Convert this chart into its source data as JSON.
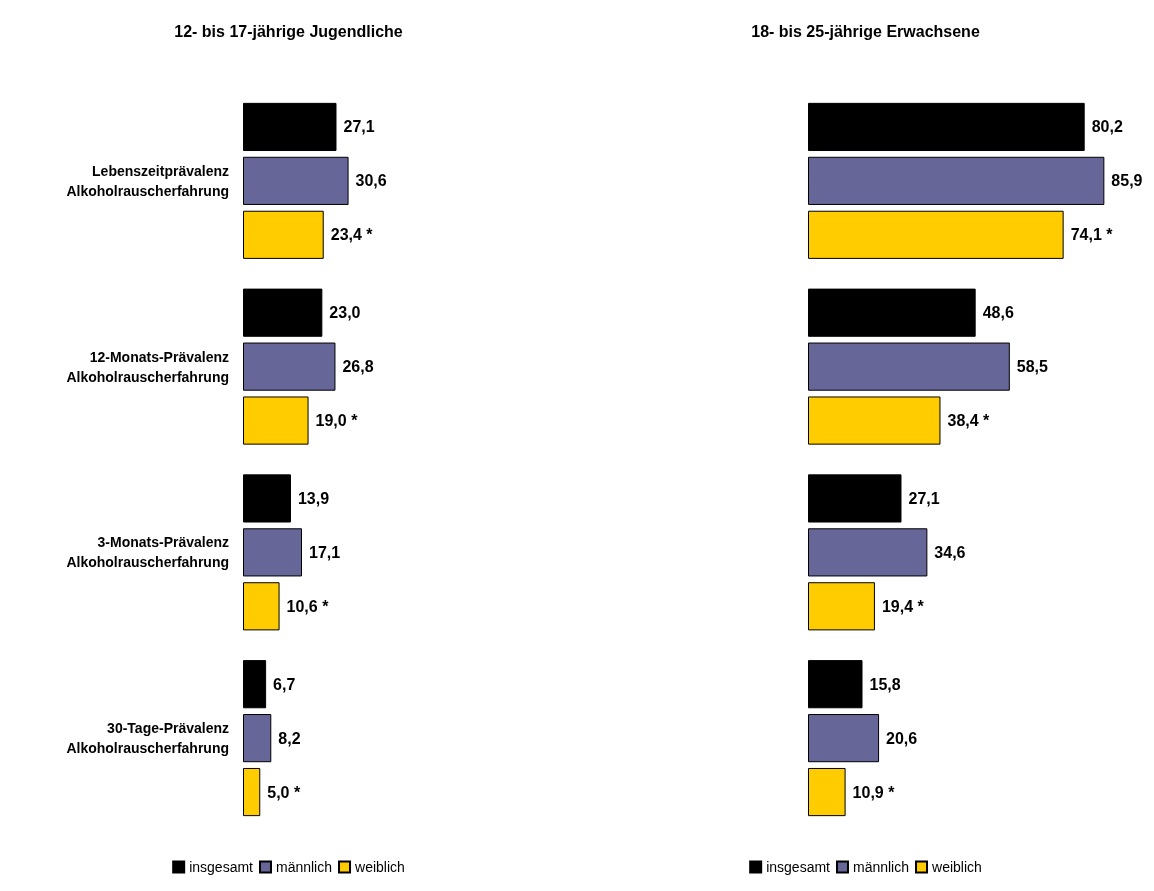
{
  "chart_data": [
    {
      "type": "bar",
      "orientation": "horizontal",
      "title": "12- bis 17-jährige Jugendliche",
      "categories": [
        "Lebenszeitprävalenz\nAlkoholrauscherfahrung",
        "12-Monats-Prävalenz\nAlkoholrauscherfahrung",
        "3-Monats-Prävalenz\nAlkoholrauscherfahrung",
        "30-Tage-Prävalenz\nAlkoholrauscherfahrung"
      ],
      "tick_labels": "y",
      "grid": false,
      "legend": "bottom",
      "series": [
        {
          "name": "insgesamt",
          "color": "#000000",
          "values": [
            27.1,
            23.0,
            13.9,
            6.7
          ],
          "value_labels": [
            "27,1",
            "23,0",
            "13,9",
            "6,7"
          ]
        },
        {
          "name": "männlich",
          "color": "#666699",
          "values": [
            30.6,
            26.8,
            17.1,
            8.2
          ],
          "value_labels": [
            "30,6",
            "26,8",
            "17,1",
            "8,2"
          ]
        },
        {
          "name": "weiblich",
          "color": "#ffcc00",
          "values": [
            23.4,
            19.0,
            10.6,
            5.0
          ],
          "value_labels": [
            "23,4 *",
            "19,0 *",
            "10,6 *",
            "5,0 *"
          ]
        }
      ]
    },
    {
      "type": "bar",
      "orientation": "horizontal",
      "title": "18- bis 25-jährige Erwachsene",
      "categories": [
        null,
        null,
        null,
        null
      ],
      "tick_labels": false,
      "grid": false,
      "legend": "bottom",
      "series": [
        {
          "name": "insgesamt",
          "color": "#000000",
          "values": [
            80.2,
            48.6,
            27.1,
            15.8
          ],
          "value_labels": [
            "80,2",
            "48,6",
            "27,1",
            "15,8"
          ]
        },
        {
          "name": "männlich",
          "color": "#666699",
          "values": [
            85.9,
            58.5,
            34.6,
            20.6
          ],
          "value_labels": [
            "85,9",
            "58,5",
            "34,6",
            "20,6"
          ]
        },
        {
          "name": "weiblich",
          "color": "#ffcc00",
          "values": [
            74.1,
            38.4,
            19.4,
            10.9
          ],
          "value_labels": [
            "74,1 *",
            "38,4 *",
            "19,4 *",
            "10,9 *"
          ]
        }
      ]
    }
  ]
}
